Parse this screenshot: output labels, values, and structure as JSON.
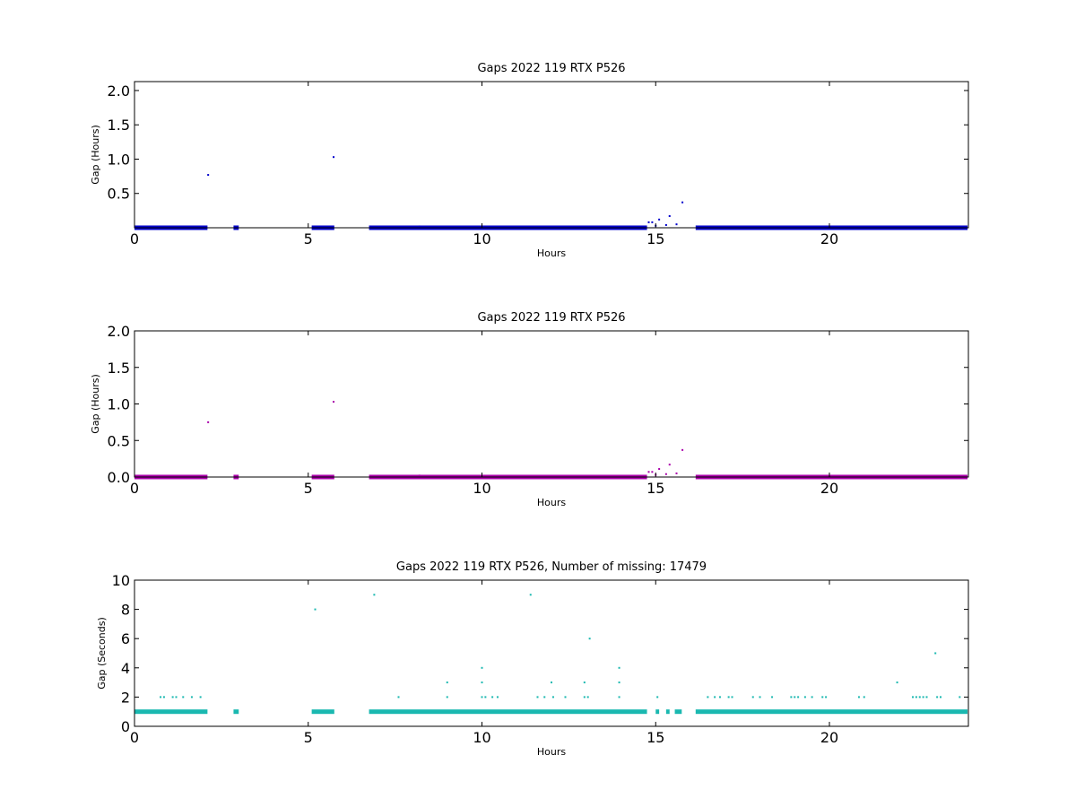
{
  "chart_data": [
    {
      "type": "scatter",
      "title": "Gaps 2022 119 RTX  P526",
      "xlabel": "Hours",
      "ylabel": "Gap (Hours)",
      "xlim": [
        0,
        24
      ],
      "ylim": [
        0,
        2.13
      ],
      "xticks": [
        0,
        5,
        10,
        15,
        20
      ],
      "yticks": [
        0.5,
        1.0,
        1.5,
        2.0
      ],
      "xtick_labels": [
        "0",
        "5",
        "10",
        "15",
        "20"
      ],
      "ytick_labels": [
        "0.5",
        "1.0",
        "1.5",
        "2.0"
      ],
      "color": "#0000cc",
      "grid": false,
      "baseline": {
        "y": 0.0003,
        "segments": [
          [
            0,
            2.1
          ],
          [
            2.85,
            3.0
          ],
          [
            5.1,
            5.75
          ],
          [
            6.75,
            14.75
          ],
          [
            16.15,
            24
          ]
        ]
      },
      "points": [
        {
          "x": 2.12,
          "y": 0.77
        },
        {
          "x": 5.73,
          "y": 1.03
        },
        {
          "x": 8.2,
          "y": 0.02
        },
        {
          "x": 14.8,
          "y": 0.08
        },
        {
          "x": 14.9,
          "y": 0.08
        },
        {
          "x": 15.0,
          "y": 0.03
        },
        {
          "x": 15.1,
          "y": 0.12
        },
        {
          "x": 15.3,
          "y": 0.04
        },
        {
          "x": 15.4,
          "y": 0.17
        },
        {
          "x": 15.6,
          "y": 0.05
        },
        {
          "x": 15.77,
          "y": 0.37
        }
      ]
    },
    {
      "type": "scatter",
      "title": "Gaps 2022 119 RTX  P526",
      "xlabel": "Hours",
      "ylabel": "Gap (Hours)",
      "xlim": [
        0,
        24
      ],
      "ylim": [
        0,
        2.0
      ],
      "xticks": [
        0,
        5,
        10,
        15,
        20
      ],
      "yticks": [
        0.0,
        0.5,
        1.0,
        1.5,
        2.0
      ],
      "xtick_labels": [
        "0",
        "5",
        "10",
        "15",
        "20"
      ],
      "ytick_labels": [
        "0.0",
        "0.5",
        "1.0",
        "1.5",
        "2.0"
      ],
      "color": "#aa00aa",
      "grid": false,
      "baseline": {
        "y": 0.0003,
        "segments": [
          [
            0,
            2.1
          ],
          [
            2.85,
            3.0
          ],
          [
            5.1,
            5.75
          ],
          [
            6.75,
            14.75
          ],
          [
            16.15,
            24
          ]
        ]
      },
      "points": [
        {
          "x": 2.12,
          "y": 0.75
        },
        {
          "x": 5.73,
          "y": 1.03
        },
        {
          "x": 8.2,
          "y": 0.02
        },
        {
          "x": 14.8,
          "y": 0.07
        },
        {
          "x": 14.9,
          "y": 0.07
        },
        {
          "x": 15.0,
          "y": 0.03
        },
        {
          "x": 15.1,
          "y": 0.11
        },
        {
          "x": 15.3,
          "y": 0.04
        },
        {
          "x": 15.4,
          "y": 0.17
        },
        {
          "x": 15.6,
          "y": 0.05
        },
        {
          "x": 15.77,
          "y": 0.37
        }
      ]
    },
    {
      "type": "scatter",
      "title": "Gaps 2022 119 RTX  P526, Number of missing: 17479",
      "xlabel": "Hours",
      "ylabel": "Gap (Seconds)",
      "xlim": [
        0,
        24
      ],
      "ylim": [
        0,
        10
      ],
      "xticks": [
        0,
        5,
        10,
        15,
        20
      ],
      "yticks": [
        0,
        2,
        4,
        6,
        8,
        10
      ],
      "xtick_labels": [
        "0",
        "5",
        "10",
        "15",
        "20"
      ],
      "ytick_labels": [
        "0",
        "2",
        "4",
        "6",
        "8",
        "10"
      ],
      "color": "#1ab8b0",
      "grid": false,
      "baseline": {
        "y": 1,
        "segments": [
          [
            0,
            2.1
          ],
          [
            2.85,
            3.0
          ],
          [
            5.1,
            5.75
          ],
          [
            6.75,
            14.75
          ],
          [
            15.0,
            15.1
          ],
          [
            15.3,
            15.4
          ],
          [
            15.55,
            15.75
          ],
          [
            16.15,
            24
          ]
        ]
      },
      "points": [
        {
          "x": 0.75,
          "y": 2
        },
        {
          "x": 0.85,
          "y": 2
        },
        {
          "x": 1.1,
          "y": 2
        },
        {
          "x": 1.2,
          "y": 2
        },
        {
          "x": 1.4,
          "y": 2
        },
        {
          "x": 1.65,
          "y": 2
        },
        {
          "x": 1.9,
          "y": 2
        },
        {
          "x": 5.2,
          "y": 8
        },
        {
          "x": 6.9,
          "y": 9
        },
        {
          "x": 7.6,
          "y": 2
        },
        {
          "x": 9.0,
          "y": 3
        },
        {
          "x": 9.0,
          "y": 2
        },
        {
          "x": 10.0,
          "y": 4
        },
        {
          "x": 10.0,
          "y": 3
        },
        {
          "x": 10.0,
          "y": 2
        },
        {
          "x": 10.1,
          "y": 2
        },
        {
          "x": 10.3,
          "y": 2
        },
        {
          "x": 10.45,
          "y": 2
        },
        {
          "x": 11.4,
          "y": 9
        },
        {
          "x": 11.6,
          "y": 2
        },
        {
          "x": 11.8,
          "y": 2
        },
        {
          "x": 12.0,
          "y": 3
        },
        {
          "x": 12.05,
          "y": 2
        },
        {
          "x": 12.4,
          "y": 2
        },
        {
          "x": 12.95,
          "y": 3
        },
        {
          "x": 12.95,
          "y": 2
        },
        {
          "x": 13.05,
          "y": 2
        },
        {
          "x": 13.1,
          "y": 6
        },
        {
          "x": 13.95,
          "y": 4
        },
        {
          "x": 13.95,
          "y": 3
        },
        {
          "x": 13.95,
          "y": 2
        },
        {
          "x": 15.05,
          "y": 2
        },
        {
          "x": 16.5,
          "y": 2
        },
        {
          "x": 16.7,
          "y": 2
        },
        {
          "x": 16.85,
          "y": 2
        },
        {
          "x": 17.1,
          "y": 2
        },
        {
          "x": 17.2,
          "y": 2
        },
        {
          "x": 17.8,
          "y": 2
        },
        {
          "x": 18.0,
          "y": 2
        },
        {
          "x": 18.35,
          "y": 2
        },
        {
          "x": 18.9,
          "y": 2
        },
        {
          "x": 19.0,
          "y": 2
        },
        {
          "x": 19.1,
          "y": 2
        },
        {
          "x": 19.3,
          "y": 2
        },
        {
          "x": 19.5,
          "y": 2
        },
        {
          "x": 19.8,
          "y": 2
        },
        {
          "x": 19.9,
          "y": 2
        },
        {
          "x": 20.85,
          "y": 2
        },
        {
          "x": 21.0,
          "y": 2
        },
        {
          "x": 21.95,
          "y": 3
        },
        {
          "x": 22.4,
          "y": 2
        },
        {
          "x": 22.5,
          "y": 2
        },
        {
          "x": 22.6,
          "y": 2
        },
        {
          "x": 22.7,
          "y": 2
        },
        {
          "x": 22.8,
          "y": 2
        },
        {
          "x": 23.05,
          "y": 5
        },
        {
          "x": 23.1,
          "y": 2
        },
        {
          "x": 23.2,
          "y": 2
        },
        {
          "x": 23.75,
          "y": 2
        }
      ]
    }
  ]
}
